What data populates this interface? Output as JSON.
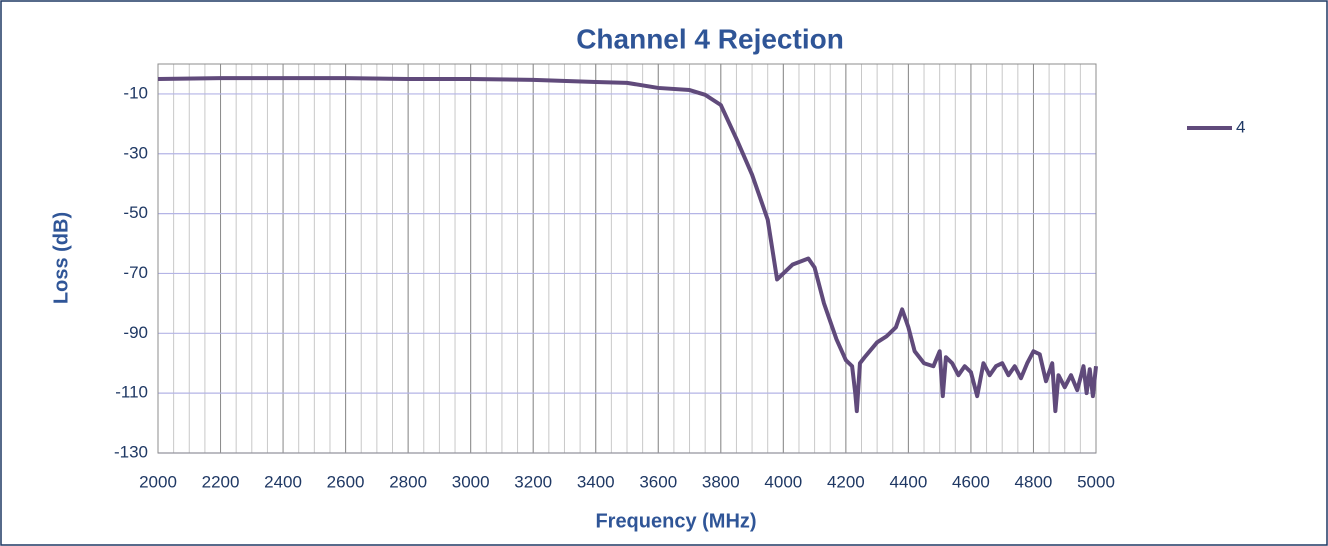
{
  "chart_data": {
    "type": "line",
    "title": "Channel 4 Rejection",
    "x_label": "Frequency (MHz)",
    "y_label": "Loss (dB)",
    "xlim": [
      2000,
      5000
    ],
    "xticks": [
      2000,
      2200,
      2400,
      2600,
      2800,
      3000,
      3200,
      3400,
      3600,
      3800,
      4000,
      4200,
      4400,
      4600,
      4800,
      5000
    ],
    "x_minor_step": 50,
    "ylim": [
      -130,
      0
    ],
    "yticks": [
      -130,
      -110,
      -90,
      -70,
      -50,
      -30,
      -10
    ],
    "grid": true,
    "legend": "right",
    "x": [
      2000,
      2200,
      2400,
      2600,
      2800,
      3000,
      3200,
      3400,
      3500,
      3600,
      3700,
      3750,
      3800,
      3850,
      3900,
      3950,
      3980,
      4000,
      4030,
      4080,
      4100,
      4130,
      4170,
      4200,
      4220,
      4230,
      4235,
      4245,
      4260,
      4300,
      4330,
      4360,
      4380,
      4400,
      4420,
      4450,
      4480,
      4500,
      4510,
      4520,
      4540,
      4560,
      4580,
      4600,
      4620,
      4640,
      4660,
      4680,
      4700,
      4720,
      4740,
      4760,
      4780,
      4800,
      4820,
      4840,
      4860,
      4870,
      4880,
      4900,
      4920,
      4940,
      4960,
      4970,
      4980,
      4990,
      5000
    ],
    "series": [
      {
        "name": "4",
        "color": "#604a7b",
        "values": [
          -5,
          -4.7,
          -4.7,
          -4.7,
          -5,
          -5,
          -5.3,
          -6,
          -6.3,
          -8,
          -8.7,
          -10.3,
          -13.7,
          -25,
          -37,
          -52,
          -72,
          -70,
          -67,
          -65,
          -68,
          -80,
          -92,
          -99,
          -101,
          -110,
          -116,
          -100,
          -98,
          -93,
          -91,
          -88,
          -82,
          -88,
          -96,
          -100,
          -101,
          -96,
          -111,
          -98,
          -100,
          -104,
          -101,
          -103,
          -111,
          -100,
          -104,
          -101,
          -100,
          -104,
          -101,
          -105,
          -100,
          -96,
          -97,
          -106,
          -100,
          -116,
          -104,
          -108,
          -104,
          -109,
          -101,
          -110,
          -102,
          -111,
          -101
        ]
      }
    ]
  }
}
